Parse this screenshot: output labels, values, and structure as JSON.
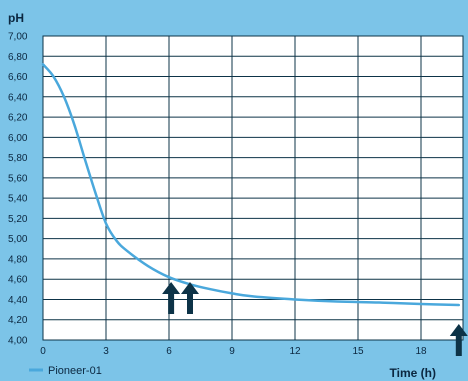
{
  "colors": {
    "background": "#7cc4e8",
    "plot_background": "#ffffff",
    "grid": "#0d3347",
    "series": "#4aa8dc",
    "arrow": "#0d3347",
    "text": "#0b2740"
  },
  "icons": [
    "up-arrow-icon"
  ],
  "chart_data": {
    "type": "line",
    "title": "",
    "xlabel": "Time (h)",
    "ylabel": "pH",
    "xlim": [
      0,
      20
    ],
    "ylim": [
      4.0,
      7.0
    ],
    "x_ticks": [
      0,
      3,
      6,
      9,
      12,
      15,
      18
    ],
    "x_tick_labels": [
      "0",
      "3",
      "6",
      "9",
      "12",
      "15",
      "18"
    ],
    "y_ticks": [
      4.0,
      4.2,
      4.4,
      4.6,
      4.8,
      5.0,
      5.2,
      5.4,
      5.6,
      5.8,
      6.0,
      6.2,
      6.4,
      6.6,
      6.8,
      7.0
    ],
    "y_tick_labels": [
      "4,00",
      "4,20",
      "4,40",
      "4,60",
      "4,80",
      "5,00",
      "5,20",
      "5,40",
      "5,60",
      "5,80",
      "6,00",
      "6,20",
      "6,40",
      "6,60",
      "6,80",
      "7,00"
    ],
    "grid": true,
    "legend_position": "bottom-left",
    "series": [
      {
        "name": "Pioneer-01",
        "x": [
          0,
          0.5,
          1,
          1.5,
          2,
          2.5,
          3,
          3.5,
          4,
          5,
          6,
          7,
          8,
          9,
          10,
          12,
          14,
          16,
          18,
          19.8
        ],
        "y": [
          6.72,
          6.6,
          6.4,
          6.12,
          5.78,
          5.45,
          5.15,
          4.98,
          4.88,
          4.73,
          4.62,
          4.55,
          4.5,
          4.46,
          4.43,
          4.4,
          4.38,
          4.37,
          4.355,
          4.345
        ]
      }
    ],
    "markers": [
      {
        "name": "up-arrow",
        "x": 6.1
      },
      {
        "name": "up-arrow",
        "x": 7.0
      },
      {
        "name": "up-arrow",
        "x": 19.8
      }
    ]
  }
}
